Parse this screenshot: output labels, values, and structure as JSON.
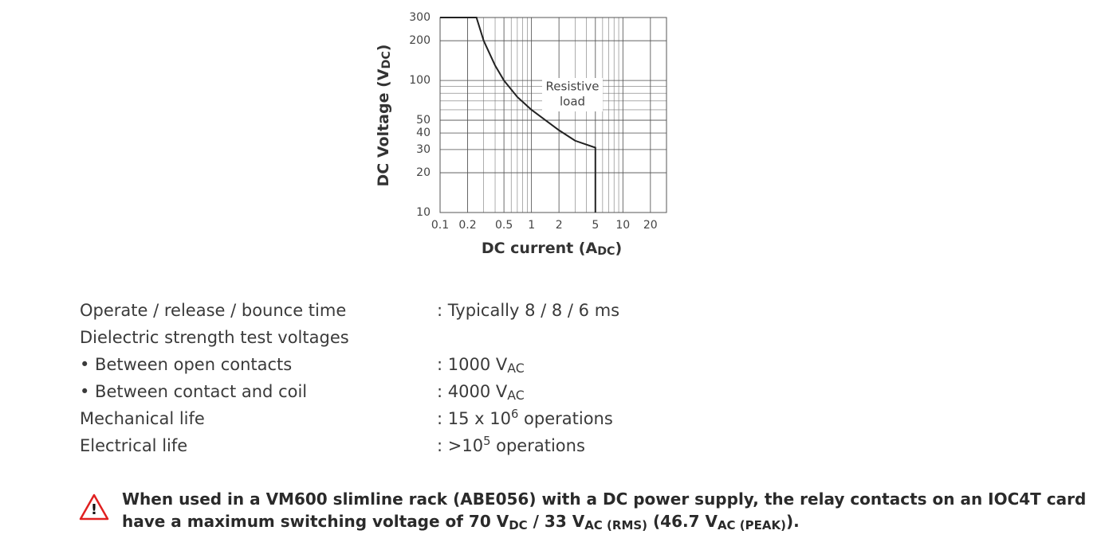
{
  "chart_data": {
    "type": "line",
    "x_label": [
      {
        "t": "DC current (A"
      },
      {
        "sub": "DC"
      },
      {
        "t": ")"
      }
    ],
    "y_label": [
      {
        "t": "DC Voltage (V"
      },
      {
        "sub": "DC"
      },
      {
        "t": ")"
      }
    ],
    "annotation": [
      "Resistive",
      "load"
    ],
    "xscale": "log",
    "yscale": "log",
    "xlim": [
      0.1,
      30
    ],
    "ylim": [
      10,
      300
    ],
    "xticks": [
      0.1,
      0.2,
      0.5,
      1,
      2,
      5,
      10,
      20
    ],
    "yticks": [
      10,
      20,
      30,
      40,
      50,
      100,
      200,
      300
    ],
    "grid": true,
    "color": "#222",
    "x": [
      0.1,
      0.25,
      0.3,
      0.4,
      0.5,
      0.7,
      1,
      2,
      3,
      5,
      5
    ],
    "values": [
      300,
      300,
      200,
      130,
      100,
      75,
      60,
      42,
      35,
      31,
      10
    ]
  },
  "specs": {
    "rows": [
      {
        "label": "Operate / release / bounce time",
        "value": [
          {
            "t": ": Typically 8 / 8 / 6 ms"
          }
        ]
      },
      {
        "label": "Dielectric strength test voltages"
      },
      {
        "label": "• Between open contacts",
        "value": [
          {
            "t": ": 1000 V"
          },
          {
            "sub": "AC"
          }
        ]
      },
      {
        "label": "• Between contact and coil",
        "value": [
          {
            "t": ": 4000 V"
          },
          {
            "sub": "AC"
          }
        ]
      },
      {
        "label": "Mechanical life",
        "value": [
          {
            "t": ": 15 x 10"
          },
          {
            "sup": "6"
          },
          {
            "t": " operations"
          }
        ]
      },
      {
        "label": "Electrical life",
        "value": [
          {
            "t": ": >10"
          },
          {
            "sup": "5"
          },
          {
            "t": " operations"
          }
        ]
      }
    ]
  },
  "warning": {
    "lines": [
      [
        {
          "t": "When used in a VM600 slimline rack (ABE056) with a DC power supply, the relay contacts on an IOC4T card"
        }
      ],
      [
        {
          "t": "have a maximum switching voltage of 70 V"
        },
        {
          "sub": "DC"
        },
        {
          "t": " / 33 V"
        },
        {
          "sub": "AC (RMS)"
        },
        {
          "t": " (46.7 V"
        },
        {
          "sub": "AC (PEAK)"
        },
        {
          "t": ")."
        }
      ]
    ]
  }
}
